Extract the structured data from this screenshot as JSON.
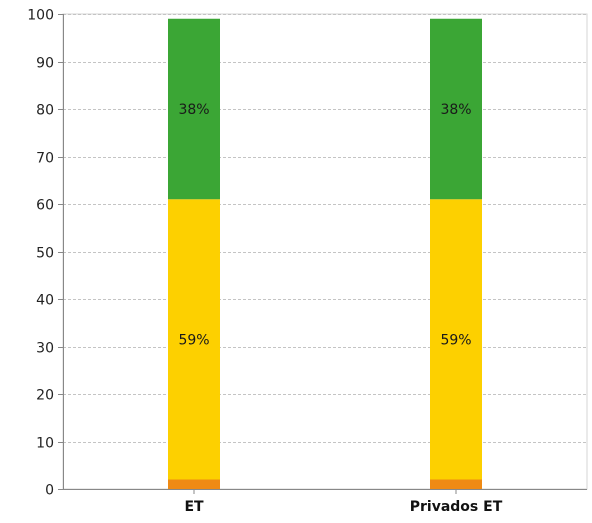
{
  "chart_data": {
    "type": "bar",
    "stacked": true,
    "categories": [
      "ET",
      "Privados ET"
    ],
    "series": [
      {
        "values": [
          2,
          2
        ],
        "color": "#ef8a14",
        "labels": [
          "",
          ""
        ]
      },
      {
        "values": [
          59,
          59
        ],
        "color": "#fdd000",
        "labels": [
          "59%",
          "59%"
        ]
      },
      {
        "values": [
          38,
          38
        ],
        "color": "#3ba635",
        "labels": [
          "38%",
          "38%"
        ]
      }
    ],
    "ylim": [
      0,
      100
    ],
    "yticks": [
      0,
      10,
      20,
      30,
      40,
      50,
      60,
      70,
      80,
      90,
      100
    ],
    "grid": true,
    "legend": "none"
  }
}
